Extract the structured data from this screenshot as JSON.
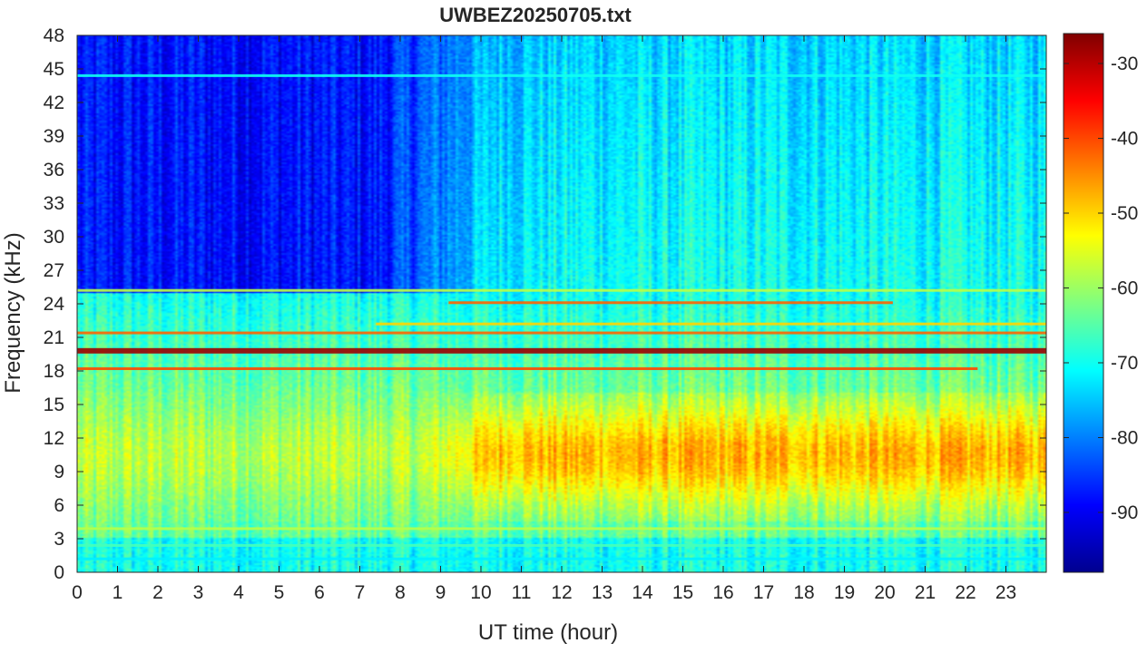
{
  "chart_data": {
    "type": "heatmap",
    "title": "UWBEZ20250705.txt",
    "xlabel": "UT time (hour)",
    "ylabel": "Frequency (kHz)",
    "xlim": [
      0,
      24
    ],
    "ylim": [
      0,
      48
    ],
    "x_ticks": [
      0,
      1,
      2,
      3,
      4,
      5,
      6,
      7,
      8,
      9,
      10,
      11,
      12,
      13,
      14,
      15,
      16,
      17,
      18,
      19,
      20,
      21,
      22,
      23
    ],
    "y_ticks": [
      0,
      3,
      6,
      9,
      12,
      15,
      18,
      21,
      24,
      27,
      30,
      33,
      36,
      39,
      42,
      45,
      48
    ],
    "colorbar": {
      "colormap": "jet",
      "clim": [
        -98,
        -26
      ],
      "ticks": [
        -90,
        -80,
        -70,
        -60,
        -50,
        -40,
        -30
      ]
    },
    "grid": false,
    "features": {
      "transmitter_lines_khz": [
        {
          "freq": 19.8,
          "level": -28,
          "x_start": 0,
          "x_end": 24
        },
        {
          "freq": 18.2,
          "level": -40,
          "x_start": 0,
          "x_end": 22.3
        },
        {
          "freq": 21.4,
          "level": -42,
          "x_start": 0,
          "x_end": 24
        },
        {
          "freq": 24.1,
          "level": -42,
          "x_start": 9.2,
          "x_end": 20.2
        },
        {
          "freq": 22.2,
          "level": -50,
          "x_start": 7.4,
          "x_end": 24
        },
        {
          "freq": 25.2,
          "level": -58,
          "x_start": 0,
          "x_end": 24
        },
        {
          "freq": 44.4,
          "level": -70,
          "x_start": 0,
          "x_end": 24
        },
        {
          "freq": 3.9,
          "level": -58,
          "x_start": 0,
          "x_end": 24
        },
        {
          "freq": 2.4,
          "level": -66,
          "x_start": 0,
          "x_end": 24
        },
        {
          "freq": 1.2,
          "level": -72,
          "x_start": 0,
          "x_end": 24
        }
      ],
      "daytime_band": {
        "freq_range": [
          6,
          16
        ],
        "time_range": [
          8.5,
          24
        ],
        "peak_level": -48
      },
      "quiet_region": {
        "freq_range": [
          26,
          48
        ],
        "time_range": [
          0,
          7.3
        ],
        "level": -88
      }
    }
  }
}
